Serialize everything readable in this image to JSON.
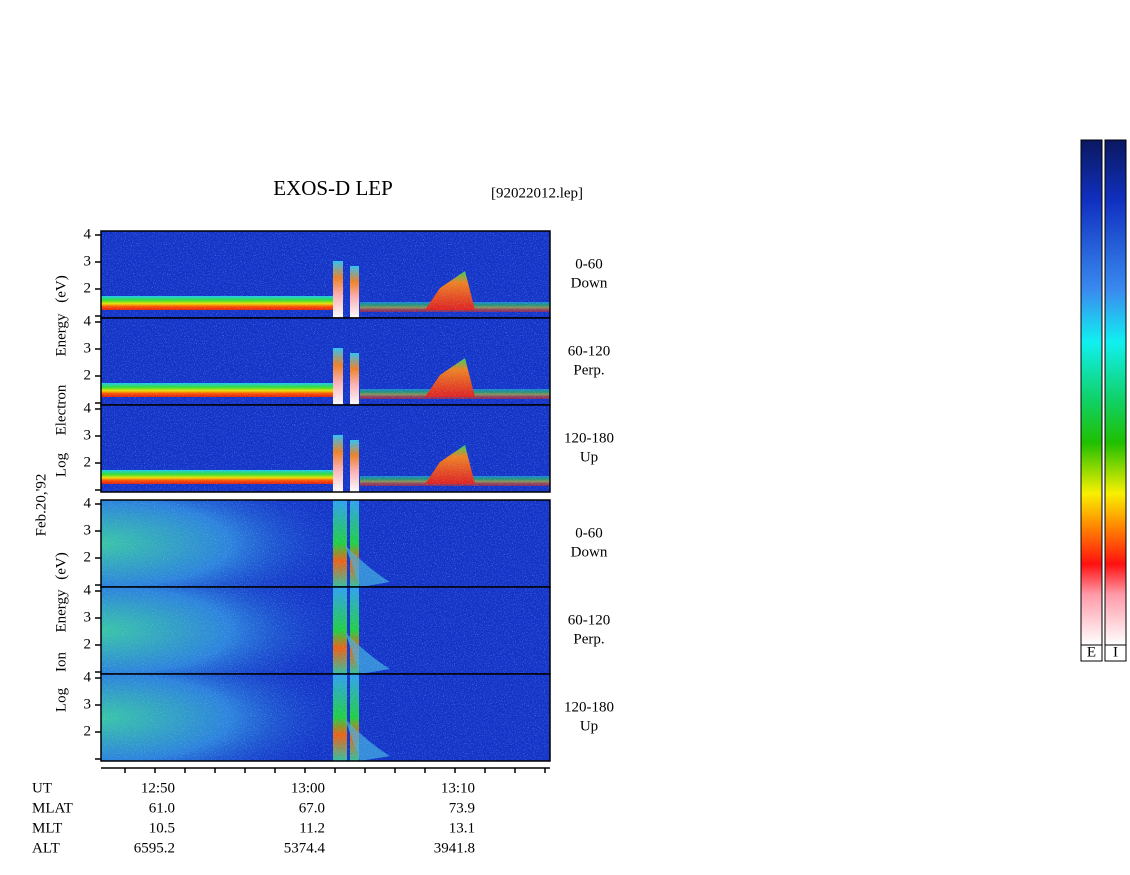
{
  "header": {
    "title": "EXOS-D LEP",
    "file": "[92022012.lep]"
  },
  "date": "Feb.20,'92",
  "energy_ticks": [
    4,
    3,
    2
  ],
  "groups": [
    {
      "axis_label": [
        "Log",
        "Electron",
        "Energy",
        "(eV)"
      ],
      "panels": [
        {
          "angle": "0-60",
          "direction": "Down"
        },
        {
          "angle": "60-120",
          "direction": "Perp."
        },
        {
          "angle": "120-180",
          "direction": "Up"
        }
      ]
    },
    {
      "axis_label": [
        "Log",
        "Ion",
        "Energy",
        "(eV)"
      ],
      "panels": [
        {
          "angle": "0-60",
          "direction": "Down"
        },
        {
          "angle": "60-120",
          "direction": "Perp."
        },
        {
          "angle": "120-180",
          "direction": "Up"
        }
      ]
    }
  ],
  "orbit": {
    "rows": [
      {
        "name": "UT",
        "values": [
          "12:50",
          "13:00",
          "13:10"
        ]
      },
      {
        "name": "MLAT",
        "values": [
          "61.0",
          "67.0",
          "73.9"
        ]
      },
      {
        "name": "MLT",
        "values": [
          "10.5",
          "11.2",
          "13.1"
        ]
      },
      {
        "name": "ALT",
        "values": [
          "6595.2",
          "5374.4",
          "3941.8"
        ]
      }
    ]
  },
  "colorbars": [
    "E",
    "I"
  ]
}
